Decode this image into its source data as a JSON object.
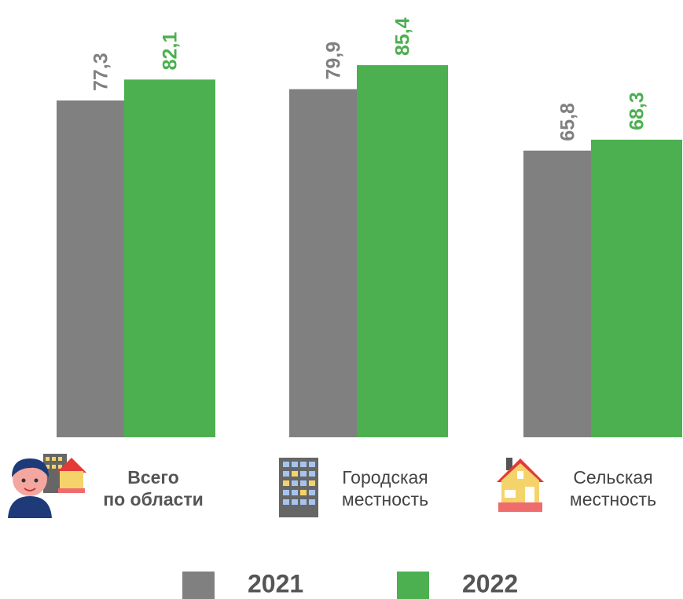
{
  "chart_data": {
    "type": "bar",
    "categories": [
      "Всего\nпо области",
      "Городская\nместность",
      "Сельская\nместность"
    ],
    "series": [
      {
        "name": "2021",
        "color": "#808080",
        "values": [
          77.3,
          79.9,
          65.8
        ],
        "value_labels": [
          "77,3",
          "79,9",
          "65,8"
        ]
      },
      {
        "name": "2022",
        "color": "#4caf50",
        "values": [
          82.1,
          85.4,
          68.3
        ],
        "value_labels": [
          "82,1",
          "85,4",
          "68,3"
        ]
      }
    ]
  }
}
